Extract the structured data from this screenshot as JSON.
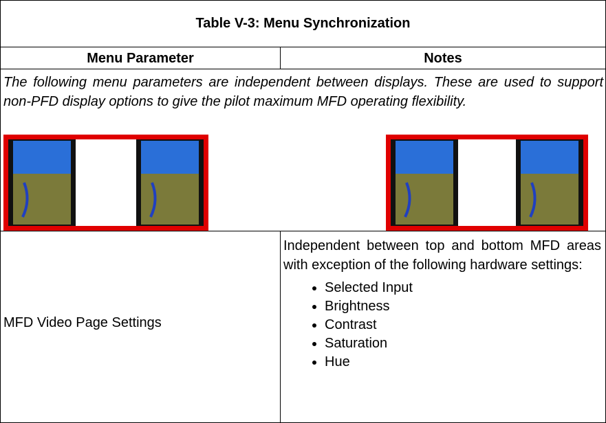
{
  "table": {
    "title": "Table V-3: Menu Synchronization",
    "headers": [
      "Menu Parameter",
      "Notes"
    ],
    "intro": "The following menu parameters are independent between displays. These are used to support non-PFD display options to give the pilot maximum MFD operating flexibility.",
    "rows": [
      {
        "parameter": "MFD Video Page Settings",
        "notes": "Independent between top and bottom MFD areas with exception of the following hardware settings:",
        "items": [
          "Selected Input",
          "Brightness",
          "Contrast",
          "Saturation",
          "Hue"
        ]
      }
    ]
  }
}
